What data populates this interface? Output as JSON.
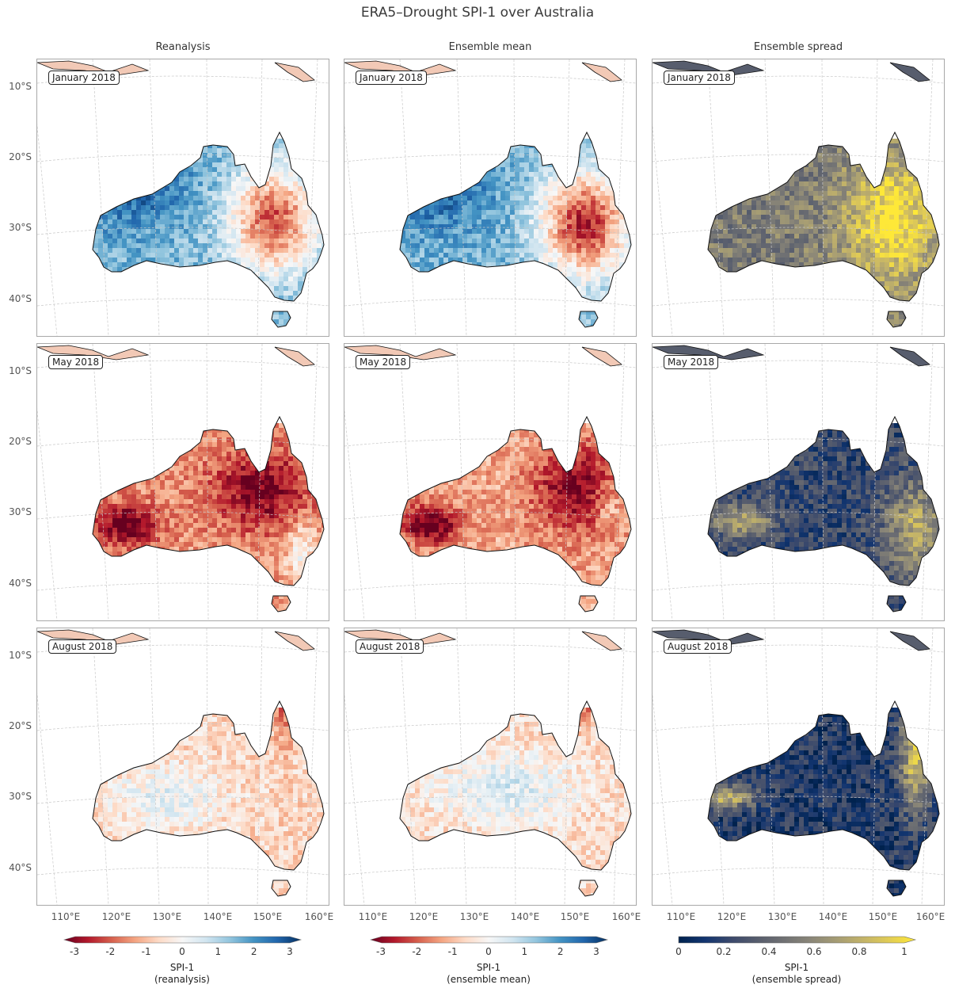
{
  "title": "ERA5–Drought SPI-1 over Australia",
  "columns": [
    "Reanalysis",
    "Ensemble mean",
    "Ensemble spread"
  ],
  "rows": [
    "January 2018",
    "May 2018",
    "August 2018"
  ],
  "lat_ticks": [
    "10°S",
    "20°S",
    "30°S",
    "40°S"
  ],
  "lon_ticks": [
    "110°E",
    "120°E",
    "130°E",
    "140°E",
    "150°E",
    "160°E"
  ],
  "colorbars": [
    {
      "ticks": [
        "-3",
        "-2",
        "-1",
        "0",
        "1",
        "2",
        "3"
      ],
      "label_line1": "SPI-1",
      "label_line2": "(reanalysis)"
    },
    {
      "ticks": [
        "-3",
        "-2",
        "-1",
        "0",
        "1",
        "2",
        "3"
      ],
      "label_line1": "SPI-1",
      "label_line2": "(ensemble mean)"
    },
    {
      "ticks": [
        "0",
        "0.2",
        "0.4",
        "0.6",
        "0.8",
        "1"
      ],
      "label_line1": "SPI-1",
      "label_line2": "(ensemble spread)"
    }
  ],
  "colors": {
    "rdbu": [
      "#67001f",
      "#b2182b",
      "#d6604d",
      "#f4a582",
      "#fddbc7",
      "#f7f7f7",
      "#d1e5f0",
      "#92c5de",
      "#4393c3",
      "#2166ac",
      "#053061"
    ],
    "cividis": [
      "#00224e",
      "#123570",
      "#3b496c",
      "#575d6d",
      "#707173",
      "#8a8678",
      "#a59c74",
      "#c3b369",
      "#e1cc55",
      "#fee838"
    ]
  },
  "map_extent": {
    "lon": [
      104,
      162
    ],
    "lat": [
      -45,
      -6
    ]
  },
  "chart_data": [
    {
      "type": "heatmap",
      "column": "Reanalysis",
      "period": "January 2018",
      "colormap": "RdBu",
      "vmin": -3,
      "vmax": 3
    },
    {
      "type": "heatmap",
      "column": "Ensemble mean",
      "period": "January 2018",
      "colormap": "RdBu",
      "vmin": -3,
      "vmax": 3
    },
    {
      "type": "heatmap",
      "column": "Ensemble spread",
      "period": "January 2018",
      "colormap": "cividis",
      "vmin": 0,
      "vmax": 1
    },
    {
      "type": "heatmap",
      "column": "Reanalysis",
      "period": "May 2018",
      "colormap": "RdBu",
      "vmin": -3,
      "vmax": 3
    },
    {
      "type": "heatmap",
      "column": "Ensemble mean",
      "period": "May 2018",
      "colormap": "RdBu",
      "vmin": -3,
      "vmax": 3
    },
    {
      "type": "heatmap",
      "column": "Ensemble spread",
      "period": "May 2018",
      "colormap": "cividis",
      "vmin": 0,
      "vmax": 1
    },
    {
      "type": "heatmap",
      "column": "Reanalysis",
      "period": "August 2018",
      "colormap": "RdBu",
      "vmin": -3,
      "vmax": 3
    },
    {
      "type": "heatmap",
      "column": "Ensemble mean",
      "period": "August 2018",
      "colormap": "RdBu",
      "vmin": -3,
      "vmax": 3
    },
    {
      "type": "heatmap",
      "column": "Ensemble spread",
      "period": "August 2018",
      "colormap": "cividis",
      "vmin": 0,
      "vmax": 1
    }
  ]
}
